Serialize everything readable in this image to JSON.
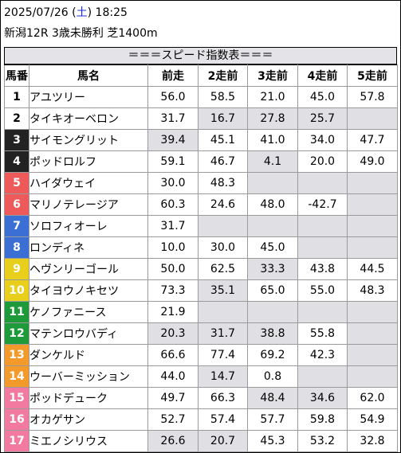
{
  "header": {
    "date": "2025/07/26",
    "weekday_open": "(",
    "weekday": "土",
    "weekday_close": ")",
    "time": "18:25",
    "race": "新潟12R 3歳未勝利 芝1400m"
  },
  "banner": "＝＝＝スピード指数表＝＝＝",
  "columns": [
    "馬番",
    "馬名",
    "前走",
    "2走前",
    "3走前",
    "4走前",
    "5走前"
  ],
  "rows": [
    {
      "no": "1",
      "name": "アユツリー",
      "v": [
        "56.0",
        "58.5",
        "21.0",
        "45.0",
        "57.8"
      ],
      "gray": [
        false,
        false,
        false,
        false,
        false
      ],
      "bar": false
    },
    {
      "no": "2",
      "name": "タイキオーベロン",
      "v": [
        "31.7",
        "16.7",
        "27.8",
        "25.7",
        ""
      ],
      "gray": [
        false,
        true,
        true,
        true,
        true
      ],
      "bar": false
    },
    {
      "no": "3",
      "name": "サイモングリット",
      "v": [
        "39.4",
        "45.1",
        "41.0",
        "34.0",
        "47.7"
      ],
      "gray": [
        true,
        false,
        false,
        false,
        false
      ],
      "bar": false
    },
    {
      "no": "4",
      "name": "ポッドロルフ",
      "v": [
        "59.1",
        "46.7",
        "4.1",
        "20.0",
        "49.0"
      ],
      "gray": [
        false,
        false,
        true,
        false,
        false
      ],
      "bar": true
    },
    {
      "no": "5",
      "name": "ハイダウェイ",
      "v": [
        "30.0",
        "48.3",
        "",
        "",
        ""
      ],
      "gray": [
        false,
        false,
        true,
        true,
        true
      ],
      "bar": false
    },
    {
      "no": "6",
      "name": "マリノテレージア",
      "v": [
        "60.3",
        "24.6",
        "48.0",
        "-42.7",
        ""
      ],
      "gray": [
        false,
        false,
        false,
        false,
        true
      ],
      "bar": false
    },
    {
      "no": "7",
      "name": "ソロフィオーレ",
      "v": [
        "31.7",
        "",
        "",
        "",
        ""
      ],
      "gray": [
        false,
        true,
        true,
        true,
        true
      ],
      "bar": true
    },
    {
      "no": "8",
      "name": "ロンディネ",
      "v": [
        "10.0",
        "30.0",
        "45.0",
        "",
        ""
      ],
      "gray": [
        false,
        false,
        false,
        true,
        true
      ],
      "bar": true
    },
    {
      "no": "9",
      "name": "ヘヴンリーゴール",
      "v": [
        "50.0",
        "62.5",
        "33.3",
        "43.8",
        "44.5"
      ],
      "gray": [
        false,
        false,
        true,
        false,
        false
      ],
      "bar": false
    },
    {
      "no": "10",
      "name": "タイヨウノキセツ",
      "v": [
        "73.3",
        "35.1",
        "65.0",
        "55.0",
        "48.3"
      ],
      "gray": [
        false,
        true,
        false,
        false,
        false
      ],
      "bar": false
    },
    {
      "no": "11",
      "name": "ケノファニース",
      "v": [
        "21.9",
        "",
        "",
        "",
        ""
      ],
      "gray": [
        false,
        true,
        true,
        true,
        true
      ],
      "bar": true
    },
    {
      "no": "12",
      "name": "マテンロウバディ",
      "v": [
        "20.3",
        "31.7",
        "38.8",
        "55.8",
        ""
      ],
      "gray": [
        true,
        true,
        true,
        false,
        true
      ],
      "bar": true
    },
    {
      "no": "13",
      "name": "ダンケルド",
      "v": [
        "66.6",
        "77.4",
        "69.2",
        "42.3",
        ""
      ],
      "gray": [
        false,
        false,
        false,
        false,
        true
      ],
      "bar": true
    },
    {
      "no": "14",
      "name": "ウーバーミッション",
      "v": [
        "44.0",
        "14.7",
        "0.8",
        "",
        ""
      ],
      "gray": [
        false,
        true,
        false,
        true,
        true
      ],
      "bar": false
    },
    {
      "no": "15",
      "name": "ポッドデューク",
      "v": [
        "49.7",
        "66.3",
        "48.4",
        "34.6",
        "62.0"
      ],
      "gray": [
        false,
        false,
        true,
        true,
        false
      ],
      "bar": false
    },
    {
      "no": "16",
      "name": "オカゲサン",
      "v": [
        "52.7",
        "57.4",
        "57.7",
        "59.8",
        "54.9"
      ],
      "gray": [
        false,
        false,
        false,
        false,
        false
      ],
      "bar": false
    },
    {
      "no": "17",
      "name": "ミエノシリウス",
      "v": [
        "26.6",
        "20.7",
        "45.3",
        "53.2",
        "32.8"
      ],
      "gray": [
        true,
        true,
        false,
        false,
        false
      ],
      "bar": false
    }
  ]
}
